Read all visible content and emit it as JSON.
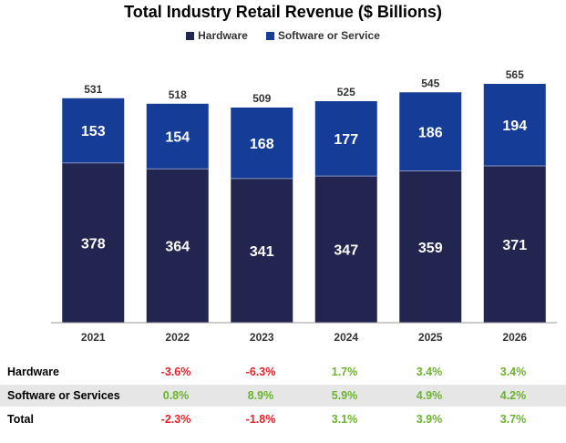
{
  "colors": {
    "hardware": "#22254f",
    "software": "#153d97",
    "axis": "#999999"
  },
  "chart_data": {
    "type": "bar",
    "stacked": true,
    "title": "Total Industry Retail Revenue ($ Billions)",
    "categories": [
      "2021",
      "2022",
      "2023",
      "2024",
      "2025",
      "2026"
    ],
    "series": [
      {
        "name": "Hardware",
        "values": [
          378,
          364,
          341,
          347,
          359,
          371
        ]
      },
      {
        "name": "Software or Service",
        "values": [
          153,
          154,
          168,
          177,
          186,
          194
        ]
      }
    ],
    "totals": [
      531,
      518,
      509,
      525,
      545,
      565
    ],
    "ylim": [
      0,
      565
    ],
    "legend_position": "top-center",
    "grid": false
  },
  "growth_table": {
    "rows": [
      {
        "label": "Hardware",
        "values": [
          "-3.6%",
          "-6.3%",
          "1.7%",
          "3.4%",
          "3.4%"
        ]
      },
      {
        "label": "Software or Services",
        "values": [
          "0.8%",
          "8.9%",
          "5.9%",
          "4.9%",
          "4.2%"
        ]
      },
      {
        "label": "Total",
        "values": [
          "-2.3%",
          "-1.8%",
          "3.1%",
          "3.9%",
          "3.7%"
        ]
      }
    ]
  }
}
